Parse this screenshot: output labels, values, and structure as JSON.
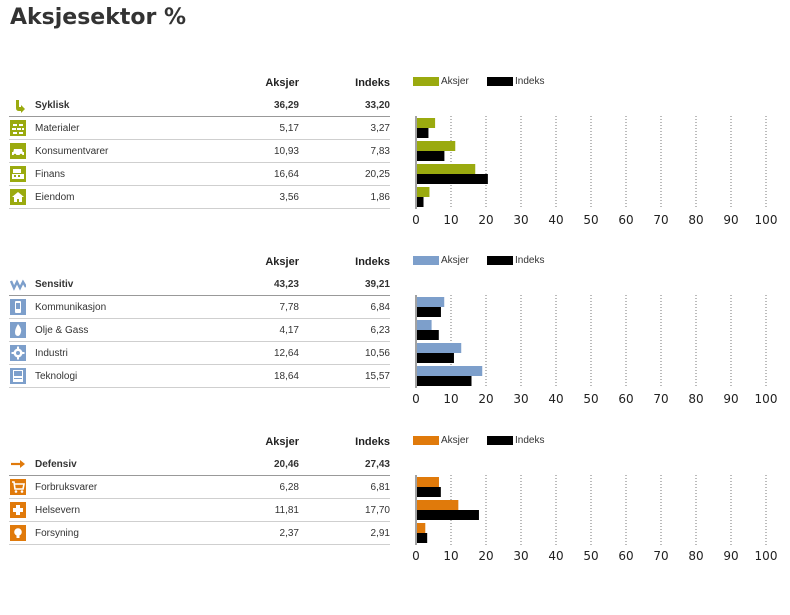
{
  "title": "Aksjesektor %",
  "header": {
    "aksjer": "Aksjer",
    "indeks": "Indeks"
  },
  "colors": {
    "syklisk": "#9aaa0f",
    "sensitiv": "#7d9fcb",
    "defensiv": "#e07a0b",
    "indeks": "#000000"
  },
  "sections": [
    {
      "key": "syklisk",
      "group": {
        "label": "Syklisk",
        "aksjer": "36,29",
        "indeks": "33,20",
        "icon": "cycle-arrow-icon"
      },
      "rows": [
        {
          "label": "Materialer",
          "aksjer": "5,17",
          "indeks": "3,27",
          "icon": "bricks-icon"
        },
        {
          "label": "Konsumentvarer",
          "aksjer": "10,93",
          "indeks": "7,83",
          "icon": "car-icon"
        },
        {
          "label": "Finans",
          "aksjer": "16,64",
          "indeks": "20,25",
          "icon": "cash-register-icon"
        },
        {
          "label": "Eiendom",
          "aksjer": "3,56",
          "indeks": "1,86",
          "icon": "house-icon"
        }
      ]
    },
    {
      "key": "sensitiv",
      "group": {
        "label": "Sensitiv",
        "aksjer": "43,23",
        "indeks": "39,21",
        "icon": "wave-icon"
      },
      "rows": [
        {
          "label": "Kommunikasjon",
          "aksjer": "7,78",
          "indeks": "6,84",
          "icon": "phone-icon"
        },
        {
          "label": "Olje & Gass",
          "aksjer": "4,17",
          "indeks": "6,23",
          "icon": "flame-icon"
        },
        {
          "label": "Industri",
          "aksjer": "12,64",
          "indeks": "10,56",
          "icon": "gear-icon"
        },
        {
          "label": "Teknologi",
          "aksjer": "18,64",
          "indeks": "15,57",
          "icon": "computer-icon"
        }
      ]
    },
    {
      "key": "defensiv",
      "group": {
        "label": "Defensiv",
        "aksjer": "20,46",
        "indeks": "27,43",
        "icon": "right-arrow-icon"
      },
      "rows": [
        {
          "label": "Forbruksvarer",
          "aksjer": "6,28",
          "indeks": "6,81",
          "icon": "cart-icon"
        },
        {
          "label": "Helsevern",
          "aksjer": "11,81",
          "indeks": "17,70",
          "icon": "medical-cross-icon"
        },
        {
          "label": "Forsyning",
          "aksjer": "2,37",
          "indeks": "2,91",
          "icon": "lightbulb-icon"
        }
      ]
    }
  ],
  "chart_data": [
    {
      "type": "bar",
      "orientation": "horizontal",
      "categories": [
        "Materialer",
        "Konsumentvarer",
        "Finans",
        "Eiendom"
      ],
      "series": [
        {
          "name": "Aksjer",
          "values": [
            5.17,
            10.93,
            16.64,
            3.56
          ]
        },
        {
          "name": "Indeks",
          "values": [
            3.27,
            7.83,
            20.25,
            1.86
          ]
        }
      ],
      "xlim": [
        0,
        100
      ],
      "xticks": [
        "0",
        "10",
        "20",
        "30",
        "40",
        "50",
        "60",
        "70",
        "80",
        "90",
        "100"
      ],
      "grid": true,
      "legend": "top"
    },
    {
      "type": "bar",
      "orientation": "horizontal",
      "categories": [
        "Kommunikasjon",
        "Olje & Gass",
        "Industri",
        "Teknologi"
      ],
      "series": [
        {
          "name": "Aksjer",
          "values": [
            7.78,
            4.17,
            12.64,
            18.64
          ]
        },
        {
          "name": "Indeks",
          "values": [
            6.84,
            6.23,
            10.56,
            15.57
          ]
        }
      ],
      "xlim": [
        0,
        100
      ],
      "xticks": [
        "0",
        "10",
        "20",
        "30",
        "40",
        "50",
        "60",
        "70",
        "80",
        "90",
        "100"
      ],
      "grid": true,
      "legend": "top"
    },
    {
      "type": "bar",
      "orientation": "horizontal",
      "categories": [
        "Forbruksvarer",
        "Helsevern",
        "Forsyning"
      ],
      "series": [
        {
          "name": "Aksjer",
          "values": [
            6.28,
            11.81,
            2.37
          ]
        },
        {
          "name": "Indeks",
          "values": [
            6.81,
            17.7,
            2.91
          ]
        }
      ],
      "xlim": [
        0,
        100
      ],
      "xticks": [
        "0",
        "10",
        "20",
        "30",
        "40",
        "50",
        "60",
        "70",
        "80",
        "90",
        "100"
      ],
      "grid": true,
      "legend": "top"
    }
  ]
}
